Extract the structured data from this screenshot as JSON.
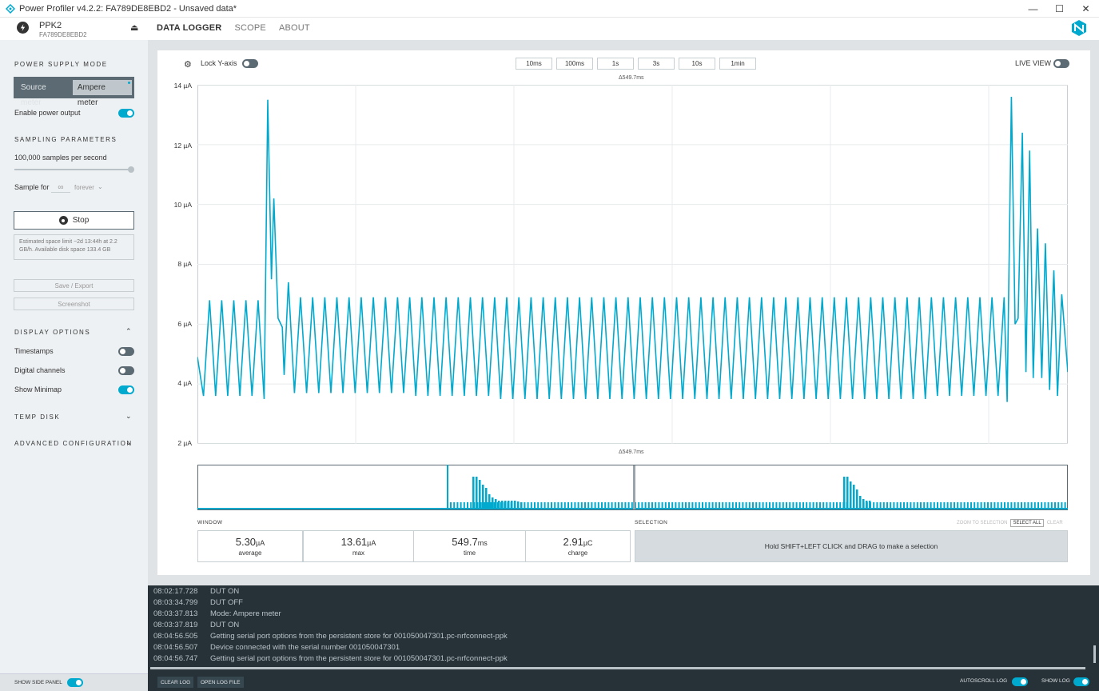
{
  "window": {
    "title": "Power Profiler v4.2.2: FA789DE8EBD2 - Unsaved data*",
    "minimize": "—",
    "maximize": "☐",
    "close": "✕"
  },
  "device": {
    "name": "PPK2",
    "serial": "FA789DE8EBD2",
    "eject": "⏏"
  },
  "nav": {
    "tabs": [
      "DATA LOGGER",
      "SCOPE",
      "ABOUT"
    ],
    "active": "DATA LOGGER"
  },
  "sidebar": {
    "power_supply_title": "POWER SUPPLY MODE",
    "mode_source": "Source meter",
    "mode_ampere": "Ampere meter",
    "enable_power": "Enable power output",
    "sampling_title": "SAMPLING PARAMETERS",
    "sample_rate": "100,000 samples per second",
    "sample_for_label": "Sample for",
    "sample_for_value": "∞",
    "sample_for_unit": "forever",
    "stop_label": "Stop",
    "info": "Estimated space limit ~2d 13:44h at 2.2 GB/h. Available disk space 133.4 GB",
    "save_export": "Save / Export",
    "screenshot": "Screenshot",
    "display_title": "DISPLAY OPTIONS",
    "timestamps": "Timestamps",
    "digital_channels": "Digital channels",
    "show_minimap": "Show Minimap",
    "temp_disk": "TEMP DISK",
    "advanced": "ADVANCED CONFIGURATION",
    "show_side_panel": "SHOW SIDE PANEL"
  },
  "chart_toolbar": {
    "lock_y": "Lock Y-axis",
    "time_buttons": [
      "10ms",
      "100ms",
      "1s",
      "3s",
      "10s",
      "1min"
    ],
    "live_view": "LIVE VIEW"
  },
  "chart_data": {
    "type": "line",
    "y_ticks": [
      "14 µA",
      "12 µA",
      "10 µA",
      "8 µA",
      "6 µA",
      "4 µA",
      "2 µA"
    ],
    "ylim": [
      2,
      14
    ],
    "window_span": "Δ549.7ms",
    "series": [
      {
        "color": "#00a9ce",
        "description_points": [
          [
            0,
            4.9
          ],
          [
            1,
            3.6
          ],
          [
            2,
            6.8
          ],
          [
            3,
            3.6
          ],
          [
            4,
            6.8
          ],
          [
            5,
            3.6
          ],
          [
            6,
            6.8
          ],
          [
            7,
            3.6
          ],
          [
            8,
            6.8
          ],
          [
            9,
            3.6
          ],
          [
            10,
            6.8
          ],
          [
            11,
            3.5
          ],
          [
            11.6,
            13.5
          ],
          [
            12.2,
            7.5
          ],
          [
            12.6,
            10.2
          ],
          [
            13.3,
            6.2
          ],
          [
            14,
            5.9
          ],
          [
            14.3,
            4.3
          ],
          [
            15,
            7.4
          ],
          [
            16,
            3.7
          ],
          [
            17,
            6.9
          ],
          [
            18,
            3.7
          ],
          [
            19,
            6.9
          ],
          [
            20,
            3.7
          ],
          [
            21,
            6.9
          ],
          [
            22,
            3.7
          ],
          [
            23,
            6.9
          ],
          [
            24,
            3.7
          ],
          [
            25,
            6.9
          ],
          [
            26,
            3.7
          ],
          [
            27,
            6.9
          ],
          [
            28,
            3.7
          ],
          [
            29,
            6.9
          ],
          [
            30,
            3.7
          ],
          [
            31,
            6.9
          ],
          [
            32,
            3.7
          ],
          [
            33,
            6.9
          ],
          [
            34,
            3.7
          ],
          [
            35,
            6.9
          ],
          [
            36,
            3.6
          ],
          [
            37,
            6.9
          ],
          [
            38,
            3.6
          ],
          [
            39,
            6.9
          ],
          [
            40,
            3.6
          ],
          [
            41,
            6.9
          ],
          [
            42,
            3.6
          ],
          [
            43,
            6.9
          ],
          [
            44,
            3.6
          ],
          [
            45,
            6.9
          ],
          [
            46,
            3.6
          ],
          [
            47,
            6.9
          ],
          [
            48,
            3.6
          ],
          [
            49,
            6.9
          ],
          [
            50,
            3.5
          ],
          [
            51,
            6.9
          ],
          [
            52,
            3.5
          ],
          [
            53,
            6.9
          ],
          [
            54,
            3.5
          ],
          [
            55,
            6.9
          ],
          [
            56,
            3.5
          ],
          [
            57,
            6.9
          ],
          [
            58,
            3.5
          ],
          [
            59,
            6.9
          ],
          [
            60,
            3.5
          ],
          [
            61,
            6.9
          ],
          [
            62,
            3.5
          ],
          [
            63,
            6.9
          ],
          [
            64,
            3.5
          ],
          [
            65,
            6.9
          ],
          [
            66,
            3.5
          ],
          [
            67,
            6.9
          ],
          [
            68,
            3.5
          ],
          [
            69,
            6.9
          ],
          [
            70,
            3.5
          ],
          [
            71,
            6.9
          ],
          [
            72,
            3.5
          ],
          [
            73,
            6.9
          ],
          [
            74,
            3.5
          ],
          [
            75,
            6.9
          ],
          [
            76,
            3.5
          ],
          [
            77,
            6.9
          ],
          [
            78,
            3.5
          ],
          [
            79,
            6.9
          ],
          [
            80,
            3.5
          ],
          [
            81,
            6.9
          ],
          [
            82,
            3.5
          ],
          [
            83,
            6.9
          ],
          [
            84,
            3.5
          ],
          [
            85,
            6.9
          ],
          [
            86,
            3.5
          ],
          [
            87,
            6.9
          ],
          [
            88,
            3.5
          ],
          [
            89,
            6.9
          ],
          [
            90,
            3.5
          ],
          [
            91,
            6.9
          ],
          [
            92,
            3.5
          ],
          [
            93,
            6.9
          ],
          [
            94,
            3.5
          ],
          [
            95,
            6.9
          ],
          [
            96,
            3.5
          ],
          [
            97,
            6.9
          ],
          [
            98,
            3.5
          ],
          [
            99,
            6.9
          ],
          [
            100,
            3.5
          ],
          [
            101,
            6.9
          ],
          [
            102,
            3.5
          ],
          [
            103,
            6.9
          ],
          [
            104,
            3.5
          ],
          [
            105,
            6.9
          ],
          [
            106,
            3.5
          ],
          [
            107,
            6.9
          ],
          [
            108,
            3.5
          ],
          [
            109,
            6.9
          ],
          [
            110,
            3.5
          ],
          [
            111,
            6.9
          ],
          [
            112,
            3.5
          ],
          [
            113,
            6.9
          ],
          [
            114,
            3.5
          ],
          [
            115,
            6.9
          ],
          [
            116,
            3.5
          ],
          [
            117,
            6.9
          ],
          [
            118,
            3.5
          ],
          [
            119,
            6.9
          ],
          [
            120,
            3.5
          ],
          [
            121,
            6.9
          ],
          [
            122,
            3.6
          ],
          [
            123,
            6.9
          ],
          [
            124,
            3.6
          ],
          [
            125,
            6.9
          ],
          [
            126,
            3.6
          ],
          [
            127,
            6.9
          ],
          [
            128,
            3.6
          ],
          [
            129,
            6.9
          ],
          [
            130,
            3.6
          ],
          [
            131,
            6.9
          ],
          [
            132,
            3.6
          ],
          [
            133,
            6.9
          ],
          [
            133.5,
            3.4
          ],
          [
            134.2,
            13.6
          ],
          [
            134.8,
            6.0
          ],
          [
            135.3,
            6.2
          ],
          [
            136,
            12.4
          ],
          [
            136.6,
            4.4
          ],
          [
            137.2,
            11.8
          ],
          [
            137.8,
            4.2
          ],
          [
            138.5,
            9.2
          ],
          [
            139.2,
            4.2
          ],
          [
            139.8,
            8.7
          ],
          [
            140.5,
            3.8
          ],
          [
            141.2,
            7.8
          ],
          [
            141.8,
            3.6
          ],
          [
            142.5,
            7.0
          ],
          [
            143.5,
            4.4
          ]
        ]
      }
    ]
  },
  "window_stats": {
    "title": "WINDOW",
    "average": "5.30",
    "average_unit": "µA",
    "average_label": "average",
    "max": "13.61",
    "max_unit": "µA",
    "max_label": "max",
    "time": "549.7",
    "time_unit": "ms",
    "time_label": "time",
    "charge": "2.91",
    "charge_unit": "µC",
    "charge_label": "charge"
  },
  "selection": {
    "title": "SELECTION",
    "zoom": "ZOOM TO SELECTION",
    "select_all": "SELECT ALL",
    "clear": "CLEAR",
    "hint": "Hold SHIFT+LEFT CLICK and DRAG to make a selection"
  },
  "log": {
    "entries": [
      {
        "time": "08:02:17.728",
        "msg": "DUT ON"
      },
      {
        "time": "08:03:34.799",
        "msg": "DUT OFF"
      },
      {
        "time": "08:03:37.813",
        "msg": "Mode: Ampere meter"
      },
      {
        "time": "08:03:37.819",
        "msg": "DUT ON"
      },
      {
        "time": "08:04:56.505",
        "msg": "Getting serial port options from the persistent store for 001050047301.pc-nrfconnect-ppk"
      },
      {
        "time": "08:04:56.507",
        "msg": "Device connected with the serial number 001050047301"
      },
      {
        "time": "08:04:56.747",
        "msg": "Getting serial port options from the persistent store for 001050047301.pc-nrfconnect-ppk"
      }
    ],
    "clear": "CLEAR LOG",
    "open": "OPEN LOG FILE",
    "autoscroll": "AUTOSCROLL LOG",
    "show_log": "SHOW LOG"
  }
}
